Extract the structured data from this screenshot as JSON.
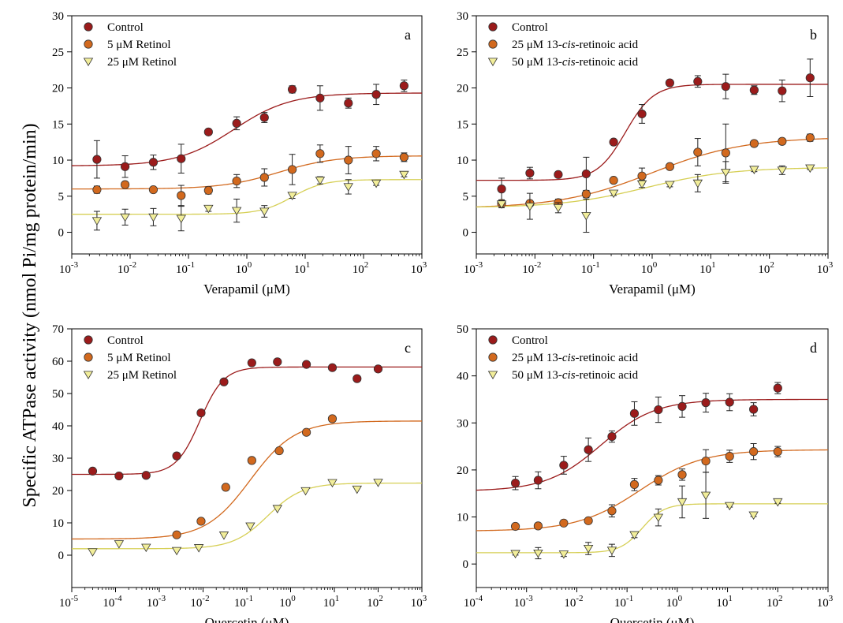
{
  "figure": {
    "ylabel": "Specific ATPase activity (nmol Pi/mg protein/min)"
  },
  "chart_data": [
    {
      "panel": "a",
      "type": "scatter",
      "xlabel": "Verapamil (μM)",
      "xscale": "log",
      "xlim": [
        0.001,
        1000
      ],
      "ylim": [
        -3,
        30
      ],
      "yticks": [
        0,
        5,
        10,
        15,
        20,
        25,
        30
      ],
      "xticks": [
        {
          "b": "10",
          "e": "-3"
        },
        {
          "b": "10",
          "e": "-2"
        },
        {
          "b": "10",
          "e": "-1"
        },
        {
          "b": "10",
          "e": "0"
        },
        {
          "b": "10",
          "e": "1"
        },
        {
          "b": "10",
          "e": "2"
        },
        {
          "b": "10",
          "e": "3"
        }
      ],
      "legend_position": "top-left",
      "series": [
        {
          "name": "Control",
          "marker": "circle",
          "color": "#9b1b1b",
          "x": [
            0.0027,
            0.0082,
            0.025,
            0.075,
            0.22,
            0.67,
            2,
            6,
            18,
            55,
            165,
            495
          ],
          "y": [
            10.1,
            9.1,
            9.7,
            10.2,
            13.9,
            15.1,
            15.9,
            19.8,
            18.6,
            17.9,
            19.1,
            20.3
          ],
          "err": [
            2.6,
            1.5,
            1.0,
            2.0,
            0.0,
            0.9,
            0.7,
            0.5,
            1.7,
            0.7,
            1.4,
            0.8
          ],
          "fit": {
            "bottom": 9.2,
            "top": 19.3,
            "ec50": 0.6,
            "hill": 0.9
          }
        },
        {
          "name": "5 μM Retinol",
          "marker": "circle",
          "color": "#d2691e",
          "x": [
            0.0027,
            0.0082,
            0.025,
            0.075,
            0.22,
            0.67,
            2,
            6,
            18,
            55,
            165,
            495
          ],
          "y": [
            5.9,
            6.6,
            5.9,
            5.1,
            5.8,
            7.1,
            7.6,
            8.7,
            10.9,
            10.0,
            10.9,
            10.4
          ],
          "err": [
            0.5,
            0.4,
            0.3,
            1.4,
            0.5,
            0.9,
            1.2,
            2.1,
            1.2,
            1.9,
            1.0,
            0.6
          ],
          "fit": {
            "bottom": 6.0,
            "top": 10.6,
            "ec50": 3.5,
            "hill": 0.9
          }
        },
        {
          "name": "25 μM Retinol",
          "marker": "triangle-down",
          "color": "#f2ee9a",
          "x": [
            0.0027,
            0.0082,
            0.025,
            0.075,
            0.22,
            0.67,
            2,
            6,
            18,
            55,
            165,
            495
          ],
          "y": [
            1.6,
            2.1,
            2.1,
            1.9,
            3.3,
            3.0,
            2.9,
            5.1,
            7.2,
            6.3,
            6.8,
            8.0
          ],
          "err": [
            1.3,
            1.1,
            1.2,
            1.7,
            0.4,
            1.6,
            0.8,
            0.4,
            0.5,
            1.0,
            0.3,
            0.3
          ],
          "fit": {
            "bottom": 2.5,
            "top": 7.3,
            "ec50": 6,
            "hill": 1.6
          }
        }
      ]
    },
    {
      "panel": "b",
      "type": "scatter",
      "xlabel": "Verapamil (μM)",
      "xscale": "log",
      "xlim": [
        0.001,
        1000
      ],
      "ylim": [
        -3,
        30
      ],
      "yticks": [
        0,
        5,
        10,
        15,
        20,
        25,
        30
      ],
      "xticks": [
        {
          "b": "10",
          "e": "-3"
        },
        {
          "b": "10",
          "e": "-2"
        },
        {
          "b": "10",
          "e": "-1"
        },
        {
          "b": "10",
          "e": "0"
        },
        {
          "b": "10",
          "e": "1"
        },
        {
          "b": "10",
          "e": "2"
        },
        {
          "b": "10",
          "e": "3"
        }
      ],
      "legend_position": "top-left",
      "series": [
        {
          "name": "Control",
          "marker": "circle",
          "color": "#9b1b1b",
          "x": [
            0.0027,
            0.0082,
            0.025,
            0.075,
            0.22,
            0.67,
            2,
            6,
            18,
            55,
            165,
            495
          ],
          "y": [
            6.0,
            8.2,
            8.0,
            8.1,
            12.5,
            16.4,
            20.7,
            20.9,
            20.2,
            19.7,
            19.6,
            21.4
          ],
          "err": [
            1.5,
            0.8,
            0.2,
            2.3,
            0.3,
            1.3,
            0.3,
            0.8,
            1.7,
            0.6,
            1.5,
            2.6
          ],
          "fit": {
            "bottom": 7.2,
            "top": 20.5,
            "ec50": 0.35,
            "hill": 1.8
          }
        },
        {
          "name": "25 μM 13-cis-retinoic acid",
          "marker": "circle",
          "color": "#d2691e",
          "x": [
            0.0027,
            0.0082,
            0.025,
            0.075,
            0.22,
            0.67,
            2,
            6,
            18,
            55,
            165,
            495
          ],
          "y": [
            4.0,
            4.0,
            4.1,
            5.3,
            7.2,
            7.8,
            9.1,
            11.1,
            11.0,
            12.3,
            12.6,
            13.1
          ],
          "err": [
            0.4,
            0.4,
            0.5,
            0.5,
            0.3,
            1.1,
            0.3,
            1.9,
            4.0,
            0.4,
            0.4,
            0.5
          ],
          "fit": {
            "bottom": 3.3,
            "top": 13.2,
            "ec50": 1.0,
            "hill": 0.55
          }
        },
        {
          "name": "50 μM 13-cis-retinoic acid",
          "marker": "triangle-down",
          "color": "#f2ee9a",
          "x": [
            0.0027,
            0.0082,
            0.025,
            0.075,
            0.22,
            0.67,
            2,
            6,
            18,
            55,
            165,
            495
          ],
          "y": [
            3.9,
            3.6,
            3.4,
            2.3,
            5.4,
            6.7,
            6.6,
            6.8,
            8.3,
            8.7,
            8.6,
            8.9
          ],
          "err": [
            0.5,
            1.8,
            0.7,
            2.3,
            0.3,
            0.5,
            0.3,
            1.2,
            1.5,
            0.3,
            0.6,
            0.2
          ],
          "fit": {
            "bottom": 3.4,
            "top": 9.0,
            "ec50": 0.8,
            "hill": 0.6
          }
        }
      ]
    },
    {
      "panel": "c",
      "type": "scatter",
      "xlabel": "Quercetin (μM)",
      "xscale": "log",
      "xlim": [
        1e-05,
        1000
      ],
      "ylim": [
        -10,
        70
      ],
      "yticks": [
        0,
        10,
        20,
        30,
        40,
        50,
        60,
        70
      ],
      "xticks": [
        {
          "b": "10",
          "e": "-5"
        },
        {
          "b": "10",
          "e": "-4"
        },
        {
          "b": "10",
          "e": "-3"
        },
        {
          "b": "10",
          "e": "-2"
        },
        {
          "b": "10",
          "e": "-1"
        },
        {
          "b": "10",
          "e": "0"
        },
        {
          "b": "10",
          "e": "1"
        },
        {
          "b": "10",
          "e": "2"
        },
        {
          "b": "10",
          "e": "3"
        }
      ],
      "legend_position": "top-left",
      "series": [
        {
          "name": "Control",
          "marker": "circle",
          "color": "#9b1b1b",
          "x": [
            3e-05,
            0.00012,
            0.0005,
            0.0025,
            0.009,
            0.03,
            0.13,
            0.5,
            2.3,
            9,
            33,
            100
          ],
          "y": [
            26.0,
            24.5,
            24.7,
            30.7,
            44.0,
            53.6,
            59.5,
            59.8,
            59.0,
            58.0,
            54.6,
            57.6
          ],
          "err": [
            0,
            0,
            0,
            0,
            0,
            0,
            0,
            0,
            0,
            0,
            0,
            0
          ],
          "fit": {
            "bottom": 25.0,
            "top": 58.2,
            "ec50": 0.0085,
            "hill": 1.6
          }
        },
        {
          "name": "5 μM Retinol",
          "marker": "circle",
          "color": "#d2691e",
          "x": [
            0.0025,
            0.009,
            0.033,
            0.13,
            0.55,
            2.3,
            9
          ],
          "y": [
            6.3,
            10.5,
            21.0,
            29.3,
            32.3,
            38.0,
            42.2
          ],
          "err": [
            0,
            0,
            0,
            0,
            0,
            0,
            0
          ],
          "fit": {
            "bottom": 5.0,
            "top": 41.5,
            "ec50": 0.12,
            "hill": 0.85
          }
        },
        {
          "name": "25 μM Retinol",
          "marker": "triangle-down",
          "color": "#f2ee9a",
          "x": [
            3e-05,
            0.00012,
            0.0005,
            0.0025,
            0.008,
            0.03,
            0.12,
            0.5,
            2.2,
            9,
            33,
            100
          ],
          "y": [
            1.0,
            3.5,
            2.4,
            1.4,
            2.3,
            6.2,
            9.0,
            14.4,
            19.9,
            22.4,
            20.4,
            22.5
          ],
          "err": [
            0,
            0,
            0,
            0,
            0,
            0,
            0,
            0,
            0,
            0,
            0,
            0
          ],
          "fit": {
            "bottom": 2.0,
            "top": 22.3,
            "ec50": 0.3,
            "hill": 1.1
          }
        }
      ]
    },
    {
      "panel": "d",
      "type": "scatter",
      "xlabel": "Quercetin (μM)",
      "xscale": "log",
      "xlim": [
        0.0001,
        1000
      ],
      "ylim": [
        -5,
        50
      ],
      "yticks": [
        0,
        10,
        20,
        30,
        40,
        50
      ],
      "xticks": [
        {
          "b": "10",
          "e": "-4"
        },
        {
          "b": "10",
          "e": "-3"
        },
        {
          "b": "10",
          "e": "-2"
        },
        {
          "b": "10",
          "e": "-1"
        },
        {
          "b": "10",
          "e": "0"
        },
        {
          "b": "10",
          "e": "1"
        },
        {
          "b": "10",
          "e": "2"
        },
        {
          "b": "10",
          "e": "3"
        }
      ],
      "legend_position": "top-left",
      "series": [
        {
          "name": "Control",
          "marker": "circle",
          "color": "#9b1b1b",
          "x": [
            0.0006,
            0.0017,
            0.0055,
            0.017,
            0.05,
            0.14,
            0.42,
            1.25,
            3.7,
            11,
            33,
            100
          ],
          "y": [
            17.2,
            17.8,
            21.0,
            24.3,
            27.1,
            32.0,
            32.8,
            33.5,
            34.3,
            34.4,
            32.9,
            37.4
          ],
          "err": [
            1.4,
            1.8,
            1.9,
            2.5,
            1.2,
            2.5,
            2.7,
            2.3,
            2.0,
            1.8,
            1.4,
            1.2
          ],
          "fit": {
            "bottom": 15.5,
            "top": 35.0,
            "ec50": 0.03,
            "hill": 0.8
          }
        },
        {
          "name": "25 μM 13-cis-retinoic acid",
          "marker": "circle",
          "color": "#d2691e",
          "x": [
            0.0006,
            0.0017,
            0.0055,
            0.017,
            0.05,
            0.14,
            0.42,
            1.25,
            3.7,
            11,
            33,
            100
          ],
          "y": [
            8.0,
            8.1,
            8.7,
            9.2,
            11.3,
            16.9,
            17.8,
            19.0,
            21.9,
            22.9,
            23.9,
            23.9
          ],
          "err": [
            0,
            0,
            0,
            0.3,
            1.3,
            1.3,
            1.0,
            1.2,
            2.4,
            1.3,
            1.7,
            1.1
          ],
          "fit": {
            "bottom": 7.0,
            "top": 24.3,
            "ec50": 0.18,
            "hill": 0.7
          }
        },
        {
          "name": "50 μM 13-cis-retinoic acid",
          "marker": "triangle-down",
          "color": "#f2ee9a",
          "x": [
            0.0006,
            0.0017,
            0.0055,
            0.017,
            0.05,
            0.14,
            0.42,
            1.25,
            3.7,
            11,
            33,
            100
          ],
          "y": [
            2.2,
            2.3,
            2.1,
            3.3,
            2.9,
            6.2,
            9.9,
            13.2,
            14.6,
            12.4,
            10.4,
            13.2
          ],
          "err": [
            0.3,
            1.2,
            0.5,
            1.3,
            1.3,
            0.6,
            1.8,
            3.4,
            4.9,
            0.3,
            0.3,
            0.3
          ],
          "fit": {
            "bottom": 2.4,
            "top": 12.8,
            "ec50": 0.2,
            "hill": 2.0
          }
        }
      ]
    }
  ]
}
